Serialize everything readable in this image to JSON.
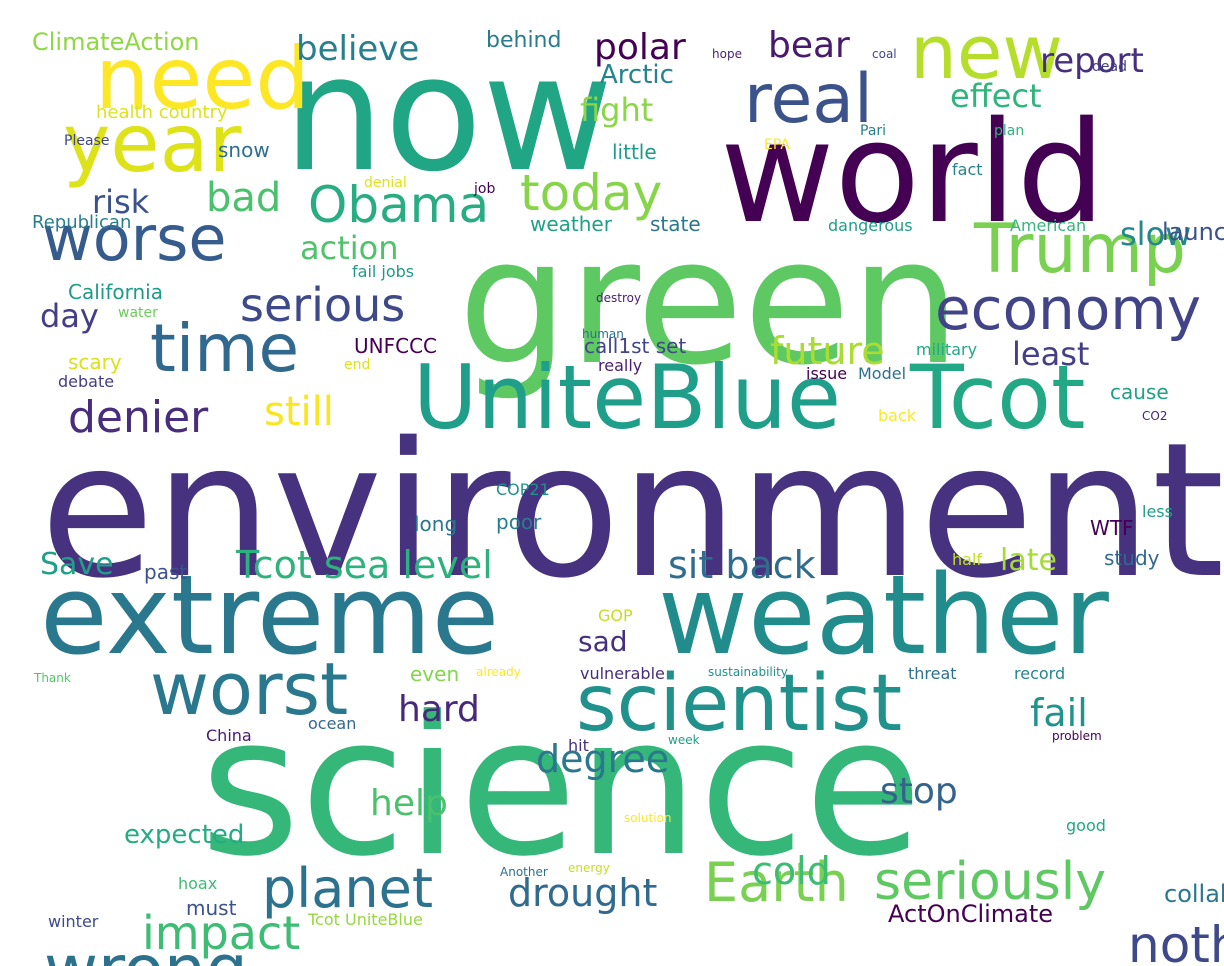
{
  "words": [
    {
      "text": "environment",
      "color": "#46327e",
      "rot": false
    },
    {
      "text": "science",
      "color": "#35b779",
      "rot": false
    },
    {
      "text": "green",
      "color": "#5ec962",
      "rot": false
    },
    {
      "text": "now",
      "color": "#21a685",
      "rot": false
    },
    {
      "text": "world",
      "color": "#440154",
      "rot": false
    },
    {
      "text": "extreme",
      "color": "#2a788e",
      "rot": false
    },
    {
      "text": "weather",
      "color": "#228c8d",
      "rot": false
    },
    {
      "text": "UniteBlue",
      "color": "#1f9e89",
      "rot": false
    },
    {
      "text": "Tcot",
      "color": "#22a884",
      "rot": false
    },
    {
      "text": "scientist",
      "color": "#21918c",
      "rot": false
    },
    {
      "text": "worst",
      "color": "#2a788e",
      "rot": false
    },
    {
      "text": "wrong",
      "color": "#2c728e",
      "rot": false
    },
    {
      "text": "time",
      "color": "#31688e",
      "rot": false
    },
    {
      "text": "worse",
      "color": "#365c8d",
      "rot": false
    },
    {
      "text": "need",
      "color": "#fde725",
      "rot": false
    },
    {
      "text": "year",
      "color": "#dde318",
      "rot": false
    },
    {
      "text": "new",
      "color": "#b5de2b",
      "rot": false
    },
    {
      "text": "real",
      "color": "#3b528b",
      "rot": false
    },
    {
      "text": "Trump",
      "color": "#7ad151",
      "rot": false
    },
    {
      "text": "economy",
      "color": "#414487",
      "rot": false
    },
    {
      "text": "Obama",
      "color": "#27ad81",
      "rot": false
    },
    {
      "text": "today",
      "color": "#86d549",
      "rot": false
    },
    {
      "text": "planet",
      "color": "#2c728e",
      "rot": false
    },
    {
      "text": "Earth",
      "color": "#7ad151",
      "rot": false
    },
    {
      "text": "seriously",
      "color": "#5ec962",
      "rot": false
    },
    {
      "text": "nothing",
      "color": "#3e4989",
      "rot": false
    },
    {
      "text": "impact",
      "color": "#3dbc74",
      "rot": false
    },
    {
      "text": "serious",
      "color": "#3e4989",
      "rot": false
    },
    {
      "text": "denier",
      "color": "#472d7b",
      "rot": false
    },
    {
      "text": "bad",
      "color": "#4ac16d",
      "rot": false
    },
    {
      "text": "still",
      "color": "#f8e621",
      "rot": false
    },
    {
      "text": "future",
      "color": "#aadc32",
      "rot": false
    },
    {
      "text": "Tcot sea level",
      "color": "#2db27d",
      "rot": false
    },
    {
      "text": "sit back",
      "color": "#2f6c8e",
      "rot": false
    },
    {
      "text": "degree",
      "color": "#2a778e",
      "rot": false
    },
    {
      "text": "fail",
      "color": "#1f948c",
      "rot": false
    },
    {
      "text": "cold",
      "color": "#3dbc74",
      "rot": false
    },
    {
      "text": "drought",
      "color": "#306a8e",
      "rot": false
    },
    {
      "text": "hard",
      "color": "#482878",
      "rot": false
    },
    {
      "text": "help",
      "color": "#4ac16d",
      "rot": false
    },
    {
      "text": "stop",
      "color": "#33638d",
      "rot": false
    },
    {
      "text": "polar",
      "color": "#440154",
      "rot": false
    },
    {
      "text": "bear",
      "color": "#481a6c",
      "rot": false
    },
    {
      "text": "believe",
      "color": "#277f8e",
      "rot": false
    },
    {
      "text": "report",
      "color": "#472f7d",
      "rot": false
    },
    {
      "text": "effect",
      "color": "#2fb47c",
      "rot": false
    },
    {
      "text": "fight",
      "color": "#8bd646",
      "rot": false
    },
    {
      "text": "Arctic",
      "color": "#25838e",
      "rot": false
    },
    {
      "text": "least",
      "color": "#433e85",
      "rot": false
    },
    {
      "text": "slow",
      "color": "#24868e",
      "rot": false
    },
    {
      "text": "action",
      "color": "#4ec36b",
      "rot": false
    },
    {
      "text": "risk",
      "color": "#3b518b",
      "rot": false
    },
    {
      "text": "day",
      "color": "#433e85",
      "rot": false
    },
    {
      "text": "Save",
      "color": "#1fa088",
      "rot": false
    },
    {
      "text": "late",
      "color": "#a5db36",
      "rot": false
    },
    {
      "text": "sad",
      "color": "#46307e",
      "rot": false
    },
    {
      "text": "collaboration",
      "color": "#2a788e",
      "rot": false
    },
    {
      "text": "expected",
      "color": "#25ab82",
      "rot": false
    },
    {
      "text": "launched",
      "color": "#3b528b",
      "rot": false
    },
    {
      "text": "ActOnClimate",
      "color": "#440154",
      "rot": false
    },
    {
      "text": "ClimateAction",
      "color": "#8fd744",
      "rot": false
    },
    {
      "text": "behind",
      "color": "#287c8e",
      "rot": false
    },
    {
      "text": "health country",
      "color": "#dde318",
      "rot": false
    },
    {
      "text": "Republican",
      "color": "#277f8e",
      "rot": false
    },
    {
      "text": "Please",
      "color": "#404688",
      "rot": false
    },
    {
      "text": "snow",
      "color": "#2d708e",
      "rot": false
    },
    {
      "text": "little",
      "color": "#1e9b8a",
      "rot": false
    },
    {
      "text": "weather",
      "color": "#1fa188",
      "rot": false
    },
    {
      "text": "state",
      "color": "#2a788e",
      "rot": false
    },
    {
      "text": "California",
      "color": "#1f9a8a",
      "rot": false
    },
    {
      "text": "call1st set",
      "color": "#404688",
      "rot": false
    },
    {
      "text": "UNFCCC",
      "color": "#440154",
      "rot": false
    },
    {
      "text": "scary",
      "color": "#d8e219",
      "rot": false
    },
    {
      "text": "water",
      "color": "#6ccd5a",
      "rot": false
    },
    {
      "text": "debate",
      "color": "#433e85",
      "rot": false
    },
    {
      "text": "end",
      "color": "#dde318",
      "rot": false
    },
    {
      "text": "really",
      "color": "#481f70",
      "rot": false
    },
    {
      "text": "military",
      "color": "#22a785",
      "rot": false
    },
    {
      "text": "issue",
      "color": "#440154",
      "rot": false
    },
    {
      "text": "Model",
      "color": "#2c718e",
      "rot": false
    },
    {
      "text": "cause",
      "color": "#1fa088",
      "rot": false
    },
    {
      "text": "back",
      "color": "#fde725",
      "rot": false
    },
    {
      "text": "CO2",
      "color": "#482475",
      "rot": false
    },
    {
      "text": "long",
      "color": "#2a788e",
      "rot": false
    },
    {
      "text": "COP21",
      "color": "#21918c",
      "rot": false
    },
    {
      "text": "poor",
      "color": "#287c8e",
      "rot": false
    },
    {
      "text": "WTF",
      "color": "#440154",
      "rot": false
    },
    {
      "text": "less",
      "color": "#1f9e89",
      "rot": false
    },
    {
      "text": "past",
      "color": "#3b528b",
      "rot": false
    },
    {
      "text": "GOP",
      "color": "#c2df23",
      "rot": false
    },
    {
      "text": "half",
      "color": "#c2df23",
      "rot": false
    },
    {
      "text": "study",
      "color": "#306a8e",
      "rot": false
    },
    {
      "text": "even",
      "color": "#84d44b",
      "rot": false
    },
    {
      "text": "already",
      "color": "#fde725",
      "rot": false
    },
    {
      "text": "vulnerable",
      "color": "#472d7b",
      "rot": false
    },
    {
      "text": "sustainability",
      "color": "#21918c",
      "rot": false
    },
    {
      "text": "threat",
      "color": "#2d708e",
      "rot": false
    },
    {
      "text": "record",
      "color": "#25858e",
      "rot": false
    },
    {
      "text": "ocean",
      "color": "#31688e",
      "rot": false
    },
    {
      "text": "Thank",
      "color": "#52c569",
      "rot": false
    },
    {
      "text": "China",
      "color": "#481a6c",
      "rot": false
    },
    {
      "text": "hit",
      "color": "#46327e",
      "rot": false
    },
    {
      "text": "week",
      "color": "#1f9e89",
      "rot": false
    },
    {
      "text": "problem",
      "color": "#440154",
      "rot": false
    },
    {
      "text": "must",
      "color": "#3b528b",
      "rot": false
    },
    {
      "text": "solution",
      "color": "#fde725",
      "rot": false
    },
    {
      "text": "good",
      "color": "#22a785",
      "rot": false
    },
    {
      "text": "energy",
      "color": "#c2df23",
      "rot": false
    },
    {
      "text": "hoax",
      "color": "#3fbc73",
      "rot": false
    },
    {
      "text": "Another",
      "color": "#2c728e",
      "rot": false
    },
    {
      "text": "winter",
      "color": "#3e4989",
      "rot": false
    },
    {
      "text": "Tcot UniteBlue",
      "color": "#95d840",
      "rot": false
    },
    {
      "text": "hope",
      "color": "#482475",
      "rot": false
    },
    {
      "text": "coal",
      "color": "#404688",
      "rot": false
    },
    {
      "text": "dead",
      "color": "#433e85",
      "rot": false
    },
    {
      "text": "EPA",
      "color": "#fde725",
      "rot": false
    },
    {
      "text": "Pari",
      "color": "#277f8e",
      "rot": false
    },
    {
      "text": "plan",
      "color": "#2fb47c",
      "rot": false
    },
    {
      "text": "fact",
      "color": "#26828e",
      "rot": false
    },
    {
      "text": "job",
      "color": "#440154",
      "rot": false
    },
    {
      "text": "denial",
      "color": "#dde318",
      "rot": false
    },
    {
      "text": "dangerous",
      "color": "#1f9e89",
      "rot": false
    },
    {
      "text": "American",
      "color": "#35b779",
      "rot": false
    },
    {
      "text": "fail jobs",
      "color": "#1f9a8a",
      "rot": false
    },
    {
      "text": "human",
      "color": "#2c728e",
      "rot": false
    },
    {
      "text": "destroy",
      "color": "#482173",
      "rot": false
    }
  ]
}
